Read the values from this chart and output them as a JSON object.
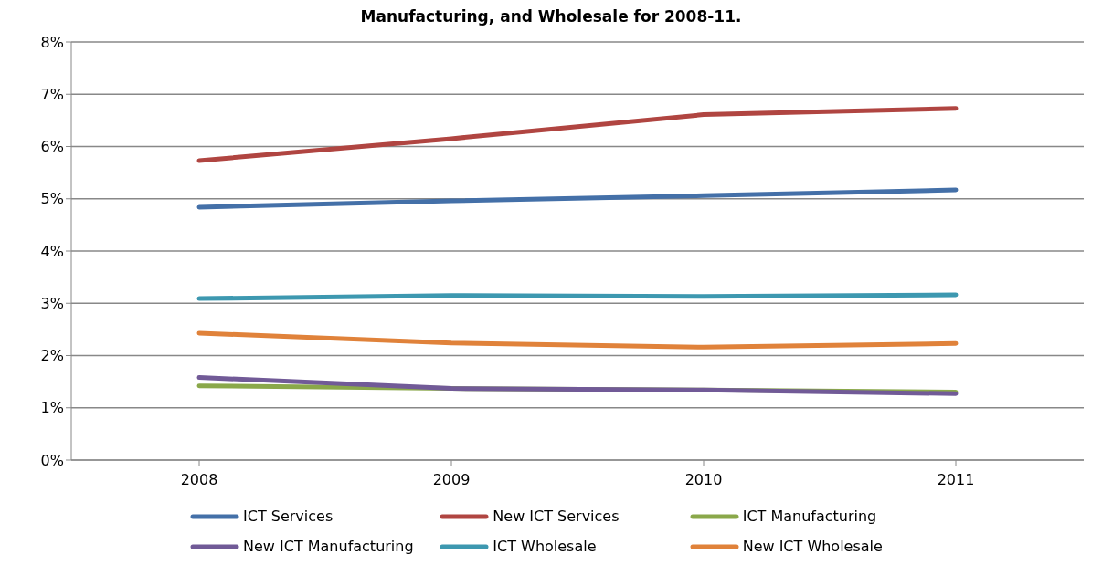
{
  "chart_data": {
    "type": "line",
    "title": "Manufacturing, and Wholesale for 2008-11.",
    "categories": [
      "2008",
      "2009",
      "2010",
      "2011"
    ],
    "series": [
      {
        "name": "ICT Services",
        "color": "#4470a8",
        "values": [
          4.84,
          4.96,
          5.06,
          5.17
        ]
      },
      {
        "name": "New ICT Services",
        "color": "#b04541",
        "values": [
          5.73,
          6.15,
          6.61,
          6.73
        ]
      },
      {
        "name": "ICT Manufacturing",
        "color": "#8aa84a",
        "values": [
          1.42,
          1.37,
          1.34,
          1.3
        ]
      },
      {
        "name": "New ICT Manufacturing",
        "color": "#715a97",
        "values": [
          1.58,
          1.37,
          1.34,
          1.27
        ]
      },
      {
        "name": "ICT Wholesale",
        "color": "#3d98b0",
        "values": [
          3.09,
          3.15,
          3.13,
          3.16
        ]
      },
      {
        "name": "New ICT Wholesale",
        "color": "#e0823a",
        "values": [
          2.43,
          2.24,
          2.16,
          2.23
        ]
      }
    ],
    "ylim": [
      0,
      8
    ],
    "yticks": [
      {
        "value": 0,
        "label": "0%"
      },
      {
        "value": 1,
        "label": "1%"
      },
      {
        "value": 2,
        "label": "2%"
      },
      {
        "value": 3,
        "label": "3%"
      },
      {
        "value": 4,
        "label": "4%"
      },
      {
        "value": 5,
        "label": "5%"
      },
      {
        "value": 6,
        "label": "6%"
      },
      {
        "value": 7,
        "label": "7%"
      },
      {
        "value": 8,
        "label": "8%"
      }
    ],
    "grid": "y",
    "legend": "bottom",
    "marker": "none",
    "line_style": "solid"
  }
}
